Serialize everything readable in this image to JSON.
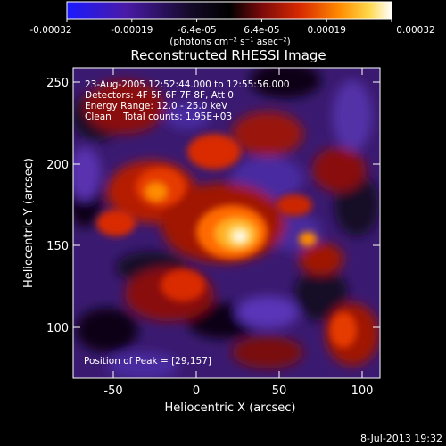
{
  "colorbar": {
    "tick_labels": [
      "-0.00032",
      "-0.00019",
      "-6.4e-05",
      "6.4e-05",
      "0.00019",
      "0.00032"
    ],
    "unit_label": "(photons cm⁻² s⁻¹ asec⁻²)",
    "colors": [
      "#1a1aff",
      "#4a1aa8",
      "#1a0d33",
      "#000000",
      "#7a0a0a",
      "#d92a00",
      "#ff8c00",
      "#ffd84a",
      "#ffffff"
    ]
  },
  "title": "Reconstructed RHESSI Image",
  "annotations": {
    "time_range": "23-Aug-2005 12:52:44.000 to 12:55:56.000",
    "detectors": "Detectors: 4F 5F 6F 7F 8F, Att 0",
    "energy": "Energy Range: 12.0 - 25.0 keV",
    "clean": "Clean    Total counts: 1.95E+03",
    "peak": "Position of Peak = [29,157]"
  },
  "xaxis": {
    "label": "Heliocentric X (arcsec)",
    "ticks": [
      "-50",
      "0",
      "50",
      "100"
    ]
  },
  "yaxis": {
    "label": "Heliocentric Y (arcsec)",
    "ticks": [
      "100",
      "150",
      "200",
      "250"
    ]
  },
  "footer_date": "8-Jul-2013 19:32"
}
